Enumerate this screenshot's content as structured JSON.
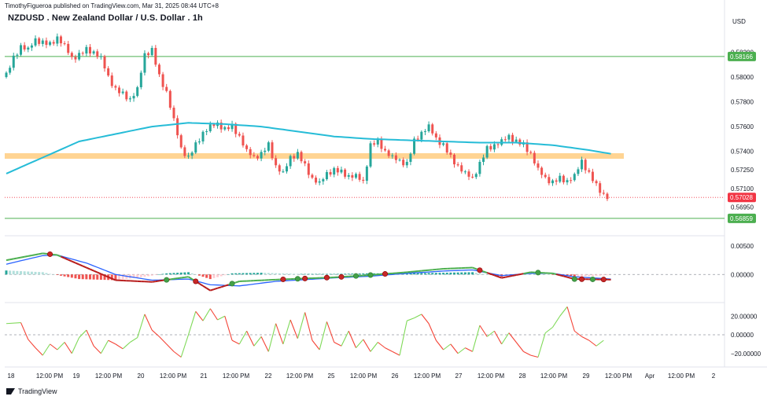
{
  "header": {
    "published_by": "TimothyFigueroa published on TradingView.com, Mar 31, 2025 08:44 UTC+8",
    "symbol_title": "NZDUSD . New Zealand Dollar / U.S. Dollar . 1h",
    "currency": "USD",
    "brand": "TradingView"
  },
  "colors": {
    "up": "#26a69a",
    "down": "#ef5350",
    "ema": "#26bcd7",
    "zone": "#ffcc80",
    "level_line": "#4caf50",
    "macd_fast": "#4caf50",
    "macd_slow": "#2962ff",
    "macd_red": "#b71c1c",
    "osc_up": "#7ed957",
    "osc_down": "#f44336",
    "price_tag": "#f23645"
  },
  "chart_data": [
    {
      "type": "candlestick",
      "pane": "price",
      "title": "NZDUSD . New Zealand Dollar / U.S. Dollar . 1h",
      "y_ticks": [
        "0.58200",
        "0.58000",
        "0.57800",
        "0.57600",
        "0.57400",
        "0.57250",
        "0.57100",
        "0.56950"
      ],
      "y_tick_values": [
        0.582,
        0.58,
        0.578,
        0.576,
        0.574,
        0.5725,
        0.571,
        0.5695
      ],
      "ylim": [
        0.5675,
        0.584
      ],
      "x_ticks": [
        "18",
        "12:00 PM",
        "19",
        "12:00 PM",
        "20",
        "12:00 PM",
        "21",
        "12:00 PM",
        "22",
        "12:00 PM",
        "25",
        "12:00 PM",
        "26",
        "12:00 PM",
        "27",
        "12:00 PM",
        "28",
        "12:00 PM",
        "29",
        "12:00 PM",
        "Apr",
        "12:00 PM",
        "2"
      ],
      "close_path": [
        [
          0,
          0.5802
        ],
        [
          2,
          0.5815
        ],
        [
          4,
          0.5825
        ],
        [
          6,
          0.5822
        ],
        [
          8,
          0.583
        ],
        [
          10,
          0.5828
        ],
        [
          12,
          0.5826
        ],
        [
          14,
          0.5832
        ],
        [
          16,
          0.5825
        ],
        [
          18,
          0.5815
        ],
        [
          20,
          0.5818
        ],
        [
          22,
          0.5822
        ],
        [
          24,
          0.582
        ],
        [
          26,
          0.5815
        ],
        [
          28,
          0.58
        ],
        [
          30,
          0.579
        ],
        [
          32,
          0.5786
        ],
        [
          34,
          0.5782
        ],
        [
          36,
          0.579
        ],
        [
          38,
          0.5818
        ],
        [
          40,
          0.5822
        ],
        [
          42,
          0.58
        ],
        [
          44,
          0.5788
        ],
        [
          46,
          0.5765
        ],
        [
          48,
          0.5742
        ],
        [
          50,
          0.5735
        ],
        [
          52,
          0.5745
        ],
        [
          54,
          0.5755
        ],
        [
          56,
          0.576
        ],
        [
          58,
          0.5762
        ],
        [
          60,
          0.5758
        ],
        [
          62,
          0.576
        ],
        [
          64,
          0.5752
        ],
        [
          66,
          0.574
        ],
        [
          68,
          0.5735
        ],
        [
          70,
          0.5738
        ],
        [
          72,
          0.5745
        ],
        [
          74,
          0.5728
        ],
        [
          76,
          0.5722
        ],
        [
          78,
          0.5735
        ],
        [
          80,
          0.5738
        ],
        [
          82,
          0.5728
        ],
        [
          84,
          0.5718
        ],
        [
          86,
          0.5714
        ],
        [
          88,
          0.5722
        ],
        [
          90,
          0.5725
        ],
        [
          92,
          0.5723
        ],
        [
          94,
          0.572
        ],
        [
          96,
          0.572
        ],
        [
          98,
          0.5715
        ],
        [
          100,
          0.5745
        ],
        [
          102,
          0.5748
        ],
        [
          104,
          0.574
        ],
        [
          106,
          0.5735
        ],
        [
          108,
          0.5732
        ],
        [
          110,
          0.573
        ],
        [
          112,
          0.5748
        ],
        [
          114,
          0.5755
        ],
        [
          116,
          0.576
        ],
        [
          118,
          0.575
        ],
        [
          120,
          0.5745
        ],
        [
          122,
          0.5735
        ],
        [
          124,
          0.5728
        ],
        [
          126,
          0.5722
        ],
        [
          128,
          0.5718
        ],
        [
          130,
          0.573
        ],
        [
          132,
          0.5742
        ],
        [
          134,
          0.5745
        ],
        [
          136,
          0.5748
        ],
        [
          138,
          0.5752
        ],
        [
          140,
          0.5748
        ],
        [
          142,
          0.5745
        ],
        [
          144,
          0.5738
        ],
        [
          146,
          0.5725
        ],
        [
          148,
          0.5718
        ],
        [
          150,
          0.5715
        ],
        [
          152,
          0.5718
        ],
        [
          154,
          0.5716
        ],
        [
          156,
          0.572
        ],
        [
          158,
          0.5732
        ],
        [
          160,
          0.5722
        ],
        [
          162,
          0.5712
        ],
        [
          164,
          0.5705
        ],
        [
          165,
          0.57028
        ]
      ],
      "ema_path": [
        [
          0,
          0.5722
        ],
        [
          20,
          0.5748
        ],
        [
          40,
          0.576
        ],
        [
          50,
          0.5763
        ],
        [
          60,
          0.5762
        ],
        [
          70,
          0.576
        ],
        [
          80,
          0.5756
        ],
        [
          90,
          0.5752
        ],
        [
          100,
          0.575
        ],
        [
          110,
          0.5749
        ],
        [
          120,
          0.5748
        ],
        [
          130,
          0.5747
        ],
        [
          140,
          0.5747
        ],
        [
          150,
          0.5745
        ],
        [
          160,
          0.5741
        ],
        [
          166,
          0.5738
        ]
      ],
      "bar_count": 166,
      "zone": [
        0.57385,
        0.5734
      ],
      "levels": [
        {
          "label": "0.58166",
          "value": 0.58166
        },
        {
          "label": "0.56859",
          "value": 0.56859
        }
      ],
      "last_price": {
        "label": "0.57028",
        "value": 0.57028
      }
    },
    {
      "type": "line",
      "pane": "macd",
      "y_ticks": [
        "0.00500",
        "0.00000"
      ],
      "y_tick_values": [
        0.005,
        0.0
      ],
      "ylim": [
        -0.0045,
        0.0065
      ],
      "fast_path": [
        [
          0,
          0.0025
        ],
        [
          10,
          0.0037
        ],
        [
          14,
          0.0034
        ],
        [
          22,
          0.0012
        ],
        [
          30,
          -0.001
        ],
        [
          40,
          -0.0013
        ],
        [
          50,
          -0.0004
        ],
        [
          56,
          -0.0028
        ],
        [
          64,
          -0.0012
        ],
        [
          74,
          -0.0009
        ],
        [
          90,
          -0.0005
        ],
        [
          100,
          -0.0001
        ],
        [
          110,
          0.0004
        ],
        [
          120,
          0.001
        ],
        [
          128,
          0.0012
        ],
        [
          136,
          -0.0006
        ],
        [
          144,
          0.0004
        ],
        [
          150,
          0.0002
        ],
        [
          156,
          -0.0008
        ],
        [
          166,
          -0.0009
        ]
      ],
      "slow_path": [
        [
          0,
          0.0018
        ],
        [
          10,
          0.0033
        ],
        [
          14,
          0.0034
        ],
        [
          22,
          0.002
        ],
        [
          30,
          0.0
        ],
        [
          40,
          -0.001
        ],
        [
          50,
          -0.0008
        ],
        [
          56,
          -0.0018
        ],
        [
          64,
          -0.002
        ],
        [
          74,
          -0.0012
        ],
        [
          90,
          -0.0006
        ],
        [
          100,
          -0.0003
        ],
        [
          110,
          0.0002
        ],
        [
          120,
          0.0006
        ],
        [
          128,
          0.0008
        ],
        [
          136,
          -0.0002
        ],
        [
          144,
          0.0002
        ],
        [
          150,
          0.0002
        ],
        [
          156,
          -0.0004
        ],
        [
          166,
          -0.0008
        ]
      ],
      "histogram_path": [
        [
          0,
          0.0007
        ],
        [
          10,
          0.0004
        ],
        [
          12,
          0.0001
        ],
        [
          14,
          -0.0001
        ],
        [
          20,
          -0.0008
        ],
        [
          30,
          -0.001
        ],
        [
          38,
          -0.0004
        ],
        [
          44,
          0.0002
        ],
        [
          50,
          0.0004
        ],
        [
          56,
          -0.0008
        ],
        [
          62,
          0.0002
        ],
        [
          70,
          0.0003
        ],
        [
          80,
          0.0001
        ],
        [
          90,
          0.0001
        ],
        [
          100,
          0.0002
        ],
        [
          110,
          0.0002
        ],
        [
          120,
          0.0003
        ],
        [
          128,
          0.0004
        ],
        [
          132,
          0.0
        ],
        [
          136,
          -0.0004
        ],
        [
          142,
          0.0002
        ],
        [
          148,
          0.0001
        ],
        [
          156,
          -0.0004
        ],
        [
          166,
          -0.0001
        ]
      ],
      "cross_up_x": [
        44,
        62,
        80,
        96,
        100,
        146,
        156,
        161
      ],
      "cross_down_x": [
        12,
        52,
        76,
        82,
        88,
        92,
        104,
        130,
        158,
        164
      ]
    },
    {
      "type": "line",
      "pane": "oscillator",
      "y_ticks": [
        "20.00000",
        "0.00000",
        "−20.00000"
      ],
      "y_tick_values": [
        20,
        0,
        -20
      ],
      "ylim": [
        -32,
        32
      ],
      "path": [
        [
          0,
          12
        ],
        [
          4,
          13
        ],
        [
          6,
          -5
        ],
        [
          8,
          -14
        ],
        [
          10,
          -22
        ],
        [
          12,
          -10
        ],
        [
          14,
          -16
        ],
        [
          16,
          -8
        ],
        [
          18,
          -20
        ],
        [
          20,
          -3
        ],
        [
          22,
          5
        ],
        [
          24,
          -12
        ],
        [
          26,
          -20
        ],
        [
          28,
          -6
        ],
        [
          30,
          -10
        ],
        [
          32,
          -15
        ],
        [
          34,
          -8
        ],
        [
          36,
          -3
        ],
        [
          38,
          22
        ],
        [
          40,
          5
        ],
        [
          42,
          -2
        ],
        [
          44,
          -10
        ],
        [
          46,
          -18
        ],
        [
          48,
          -24
        ],
        [
          50,
          0
        ],
        [
          52,
          25
        ],
        [
          54,
          15
        ],
        [
          56,
          28
        ],
        [
          58,
          16
        ],
        [
          60,
          20
        ],
        [
          62,
          -6
        ],
        [
          64,
          -10
        ],
        [
          66,
          4
        ],
        [
          68,
          -12
        ],
        [
          70,
          -2
        ],
        [
          72,
          -18
        ],
        [
          74,
          12
        ],
        [
          76,
          -10
        ],
        [
          78,
          16
        ],
        [
          80,
          -4
        ],
        [
          82,
          24
        ],
        [
          84,
          -6
        ],
        [
          86,
          -16
        ],
        [
          88,
          14
        ],
        [
          90,
          -8
        ],
        [
          92,
          -12
        ],
        [
          94,
          4
        ],
        [
          96,
          -14
        ],
        [
          98,
          -5
        ],
        [
          100,
          -18
        ],
        [
          102,
          -8
        ],
        [
          104,
          -14
        ],
        [
          106,
          -18
        ],
        [
          108,
          -22
        ],
        [
          110,
          15
        ],
        [
          112,
          18
        ],
        [
          114,
          22
        ],
        [
          116,
          12
        ],
        [
          118,
          -6
        ],
        [
          120,
          -16
        ],
        [
          122,
          -10
        ],
        [
          124,
          -20
        ],
        [
          126,
          -14
        ],
        [
          128,
          -18
        ],
        [
          130,
          10
        ],
        [
          132,
          -2
        ],
        [
          134,
          4
        ],
        [
          136,
          -10
        ],
        [
          138,
          2
        ],
        [
          140,
          -8
        ],
        [
          142,
          -18
        ],
        [
          144,
          -22
        ],
        [
          146,
          -24
        ],
        [
          148,
          2
        ],
        [
          150,
          8
        ],
        [
          152,
          20
        ],
        [
          154,
          30
        ],
        [
          156,
          4
        ],
        [
          158,
          -2
        ],
        [
          160,
          -6
        ],
        [
          162,
          -12
        ],
        [
          164,
          -6
        ]
      ],
      "zero_line": true
    }
  ]
}
